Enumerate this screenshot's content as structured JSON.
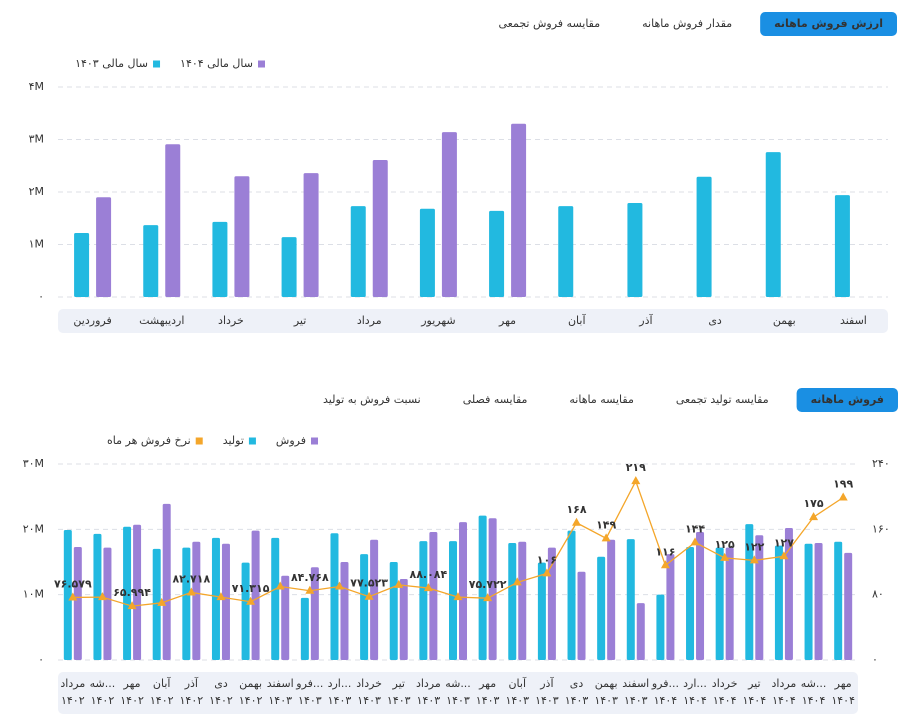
{
  "chart_data": [
    {
      "type": "bar",
      "tabs": [
        "ارزش فروش ماهانه",
        "مقدار فروش ماهانه",
        "مقایسه فروش تجمعی"
      ],
      "active_tab": 0,
      "categories": [
        "فروردین",
        "اردیبهشت",
        "خرداد",
        "تیر",
        "مرداد",
        "شهریور",
        "مهر",
        "آبان",
        "آذر",
        "دی",
        "بهمن",
        "اسفند"
      ],
      "series": [
        {
          "name": "سال مالی ۱۴۰۴",
          "color": "#9b7fd6",
          "values": [
            1900000,
            2910000,
            2300000,
            2360000,
            2610000,
            3140000,
            3300000,
            null,
            null,
            null,
            null,
            null
          ]
        },
        {
          "name": "سال مالی ۱۴۰۳",
          "color": "#22b9e0",
          "values": [
            1220000,
            1370000,
            1430000,
            1140000,
            1730000,
            1680000,
            1640000,
            1730000,
            1790000,
            2290000,
            2760000,
            1940000
          ]
        }
      ],
      "ylim": [
        0,
        4000000
      ],
      "yticks": [
        {
          "value": 0,
          "label": "۰"
        },
        {
          "value": 1000000,
          "label": "۱M"
        },
        {
          "value": 2000000,
          "label": "۲M"
        },
        {
          "value": 3000000,
          "label": "۳M"
        },
        {
          "value": 4000000,
          "label": "۴M"
        }
      ],
      "grid": true
    },
    {
      "type": "bar",
      "tabs": [
        "فروش ماهانه",
        "مقایسه تولید تجمعی",
        "مقایسه ماهانه",
        "مقایسه فصلی",
        "نسبت فروش به تولید"
      ],
      "active_tab": 0,
      "categories": [
        [
          "مرداد",
          "۱۴۰۲"
        ],
        [
          "شه...",
          "۱۴۰۲"
        ],
        [
          "مهر",
          "۱۴۰۲"
        ],
        [
          "آبان",
          "۱۴۰۲"
        ],
        [
          "آذر",
          "۱۴۰۲"
        ],
        [
          "دی",
          "۱۴۰۲"
        ],
        [
          "بهمن",
          "۱۴۰۲"
        ],
        [
          "اسفند",
          "۱۴۰۳"
        ],
        [
          "فرو...",
          "۱۴۰۳"
        ],
        [
          "ارد...",
          "۱۴۰۳"
        ],
        [
          "خرداد",
          "۱۴۰۳"
        ],
        [
          "تیر",
          "۱۴۰۳"
        ],
        [
          "مرداد",
          "۱۴۰۳"
        ],
        [
          "شه...",
          "۱۴۰۳"
        ],
        [
          "مهر",
          "۱۴۰۳"
        ],
        [
          "آبان",
          "۱۴۰۳"
        ],
        [
          "آذر",
          "۱۴۰۳"
        ],
        [
          "دی",
          "۱۴۰۳"
        ],
        [
          "بهمن",
          "۱۴۰۳"
        ],
        [
          "اسفند",
          "۱۴۰۳"
        ],
        [
          "فرو...",
          "۱۴۰۴"
        ],
        [
          "ارد...",
          "۱۴۰۴"
        ],
        [
          "خرداد",
          "۱۴۰۴"
        ],
        [
          "تیر",
          "۱۴۰۴"
        ],
        [
          "مرداد",
          "۱۴۰۴"
        ],
        [
          "شه...",
          "۱۴۰۴"
        ],
        [
          "مهر",
          "۱۴۰۴"
        ]
      ],
      "series": [
        {
          "name": "فروش",
          "color": "#9b7fd6",
          "values": [
            17300000,
            17200000,
            20700000,
            23900000,
            18100000,
            17800000,
            19800000,
            12900000,
            14200000,
            15000000,
            18400000,
            12400000,
            19600000,
            21100000,
            21700000,
            18100000,
            17200000,
            13500000,
            18400000,
            8700000,
            16200000,
            19600000,
            17200000,
            19100000,
            20200000,
            17900000,
            16400000
          ]
        },
        {
          "name": "تولید",
          "color": "#22b9e0",
          "values": [
            19900000,
            19300000,
            20400000,
            17000000,
            17200000,
            18700000,
            14900000,
            18700000,
            9500000,
            19400000,
            16200000,
            15000000,
            18200000,
            18200000,
            22100000,
            17900000,
            14900000,
            19800000,
            15800000,
            18500000,
            10000000,
            17300000,
            17200000,
            20800000,
            17500000,
            17800000,
            18100000
          ]
        },
        {
          "name": "نرخ فروش هر ماه",
          "color": "#f4a62a",
          "type": "line",
          "axis": "y2",
          "values": [
            76.579,
            77,
            65.994,
            70,
            82.718,
            77,
            71.315,
            90,
            84.768,
            90,
            77.523,
            92,
            88.084,
            77,
            75.722,
            95,
            106,
            168,
            149,
            219,
            116,
            144,
            125,
            122,
            127,
            175,
            199
          ],
          "value_labels": [
            "۷۶.۵۷۹",
            null,
            "۶۵.۹۹۴",
            null,
            "۸۲.۷۱۸",
            null,
            "۷۱.۳۱۵",
            null,
            "۸۴.۷۶۸",
            null,
            "۷۷.۵۲۳",
            null,
            "۸۸.۰۸۴",
            null,
            "۷۵.۷۲۲",
            null,
            "۱۰۶",
            "۱۶۸",
            "۱۴۹",
            "۲۱۹",
            "۱۱۶",
            "۱۴۴",
            "۱۲۵",
            "۱۲۲",
            "۱۲۷",
            "۱۷۵",
            "۱۹۹"
          ]
        }
      ],
      "ylim": [
        0,
        30000000
      ],
      "yticks": [
        {
          "value": 0,
          "label": "۰"
        },
        {
          "value": 10000000,
          "label": "۱۰M"
        },
        {
          "value": 20000000,
          "label": "۲۰M"
        },
        {
          "value": 30000000,
          "label": "۳۰M"
        }
      ],
      "y2lim": [
        0,
        240
      ],
      "y2ticks": [
        {
          "value": 0,
          "label": "۰"
        },
        {
          "value": 80,
          "label": "۸۰"
        },
        {
          "value": 160,
          "label": "۱۶۰"
        },
        {
          "value": 240,
          "label": "۲۴۰"
        }
      ],
      "grid": true
    }
  ]
}
